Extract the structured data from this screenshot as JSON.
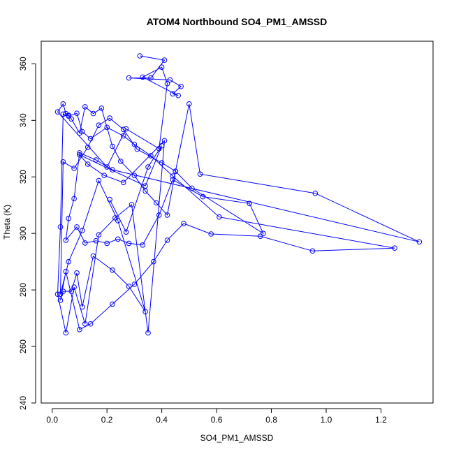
{
  "chart_data": {
    "type": "line",
    "title": "ATOM4 Northbound SO4_PM1_AMSSD",
    "xlabel": "SO4_PM1_AMSSD",
    "ylabel": "Theta (K)",
    "xlim": [
      -0.04,
      1.39
    ],
    "ylim": [
      240,
      368
    ],
    "x_ticks": [
      0.0,
      0.2,
      0.4,
      0.6,
      0.8,
      1.0,
      1.2
    ],
    "x_tick_labels": [
      "0.0",
      "0.2",
      "0.4",
      "0.6",
      "0.8",
      "1.0",
      "1.2"
    ],
    "y_ticks": [
      240,
      260,
      280,
      300,
      320,
      340,
      360
    ],
    "y_tick_labels": [
      "240",
      "260",
      "280",
      "300",
      "320",
      "340",
      "360"
    ],
    "grid": false,
    "color": "#0000ff",
    "series": [
      {
        "x": [
          0.32,
          0.41,
          0.36,
          0.28,
          0.43,
          0.47,
          0.44,
          0.46,
          0.33,
          0.4,
          0.42,
          0.39,
          0.27,
          0.2,
          0.02,
          0.04,
          0.05,
          0.06,
          0.07,
          0.1,
          0.12,
          0.15,
          0.18,
          0.22,
          0.25,
          0.3,
          0.34,
          0.38,
          0.42,
          0.45,
          0.5,
          0.54,
          0.96,
          1.34,
          0.22,
          0.16,
          0.1,
          0.08,
          0.06,
          0.05,
          0.09,
          0.12,
          0.16,
          0.2,
          0.24,
          0.28,
          0.33,
          0.39,
          0.44,
          0.55,
          0.72,
          0.77,
          0.51,
          0.45,
          0.4,
          0.31,
          0.26,
          0.21,
          0.17,
          0.13,
          0.08,
          0.04,
          0.03,
          0.06,
          0.11,
          0.17,
          0.24,
          0.34,
          0.28,
          0.22,
          0.15,
          0.11,
          0.09,
          0.07,
          0.04,
          0.03,
          0.05,
          0.1,
          0.14,
          0.22,
          0.3,
          0.37,
          0.42,
          0.48,
          0.58,
          0.76,
          0.95,
          1.25,
          0.61,
          0.44,
          0.36,
          0.3,
          0.26,
          0.2,
          0.14,
          0.11,
          0.09,
          0.06,
          0.04,
          0.03,
          0.02,
          0.05,
          0.08,
          0.12,
          0.17,
          0.23,
          0.29,
          0.35,
          0.41,
          0.26,
          0.19,
          0.13,
          0.1,
          0.34,
          0.4,
          0.35,
          0.27,
          0.21
        ],
        "y": [
          362.8,
          361.3,
          355.0,
          355.0,
          354.3,
          352.0,
          349.4,
          348.8,
          355.3,
          358.8,
          353.0,
          330.0,
          337.0,
          323.5,
          343.0,
          345.8,
          342.4,
          341.8,
          340.5,
          335.5,
          344.8,
          342.4,
          344.3,
          330.8,
          325.5,
          320.5,
          315.0,
          310.8,
          306.5,
          322.0,
          345.8,
          321.0,
          314.2,
          297.0,
          322.5,
          326.0,
          328.5,
          312.3,
          305.3,
          297.6,
          302.3,
          296.6,
          297.4,
          296.5,
          298.0,
          296.5,
          295.9,
          306.5,
          319.0,
          313.0,
          310.6,
          300.0,
          316.0,
          322.0,
          325.0,
          329.8,
          336.8,
          340.8,
          338.3,
          330.5,
          323.0,
          325.3,
          278.5,
          290.0,
          301.0,
          318.7,
          304.5,
          272.3,
          281.3,
          287.0,
          292.0,
          274.0,
          286.0,
          279.5,
          279.5,
          276.3,
          286.5,
          266.0,
          268.0,
          275.0,
          282.0,
          290.0,
          297.6,
          303.5,
          299.8,
          299.0,
          293.8,
          294.8,
          305.8,
          320.3,
          327.5,
          331.5,
          334.5,
          337.5,
          333.5,
          336.0,
          342.5,
          341.5,
          342.2,
          302.3,
          278.5,
          264.8,
          281.0,
          268.0,
          299.5,
          305.5,
          310.2,
          264.8,
          332.8,
          318.0,
          320.5,
          324.5,
          327.8,
          316.8,
          331.0,
          323.5,
          300.5,
          312.0
        ]
      }
    ]
  }
}
